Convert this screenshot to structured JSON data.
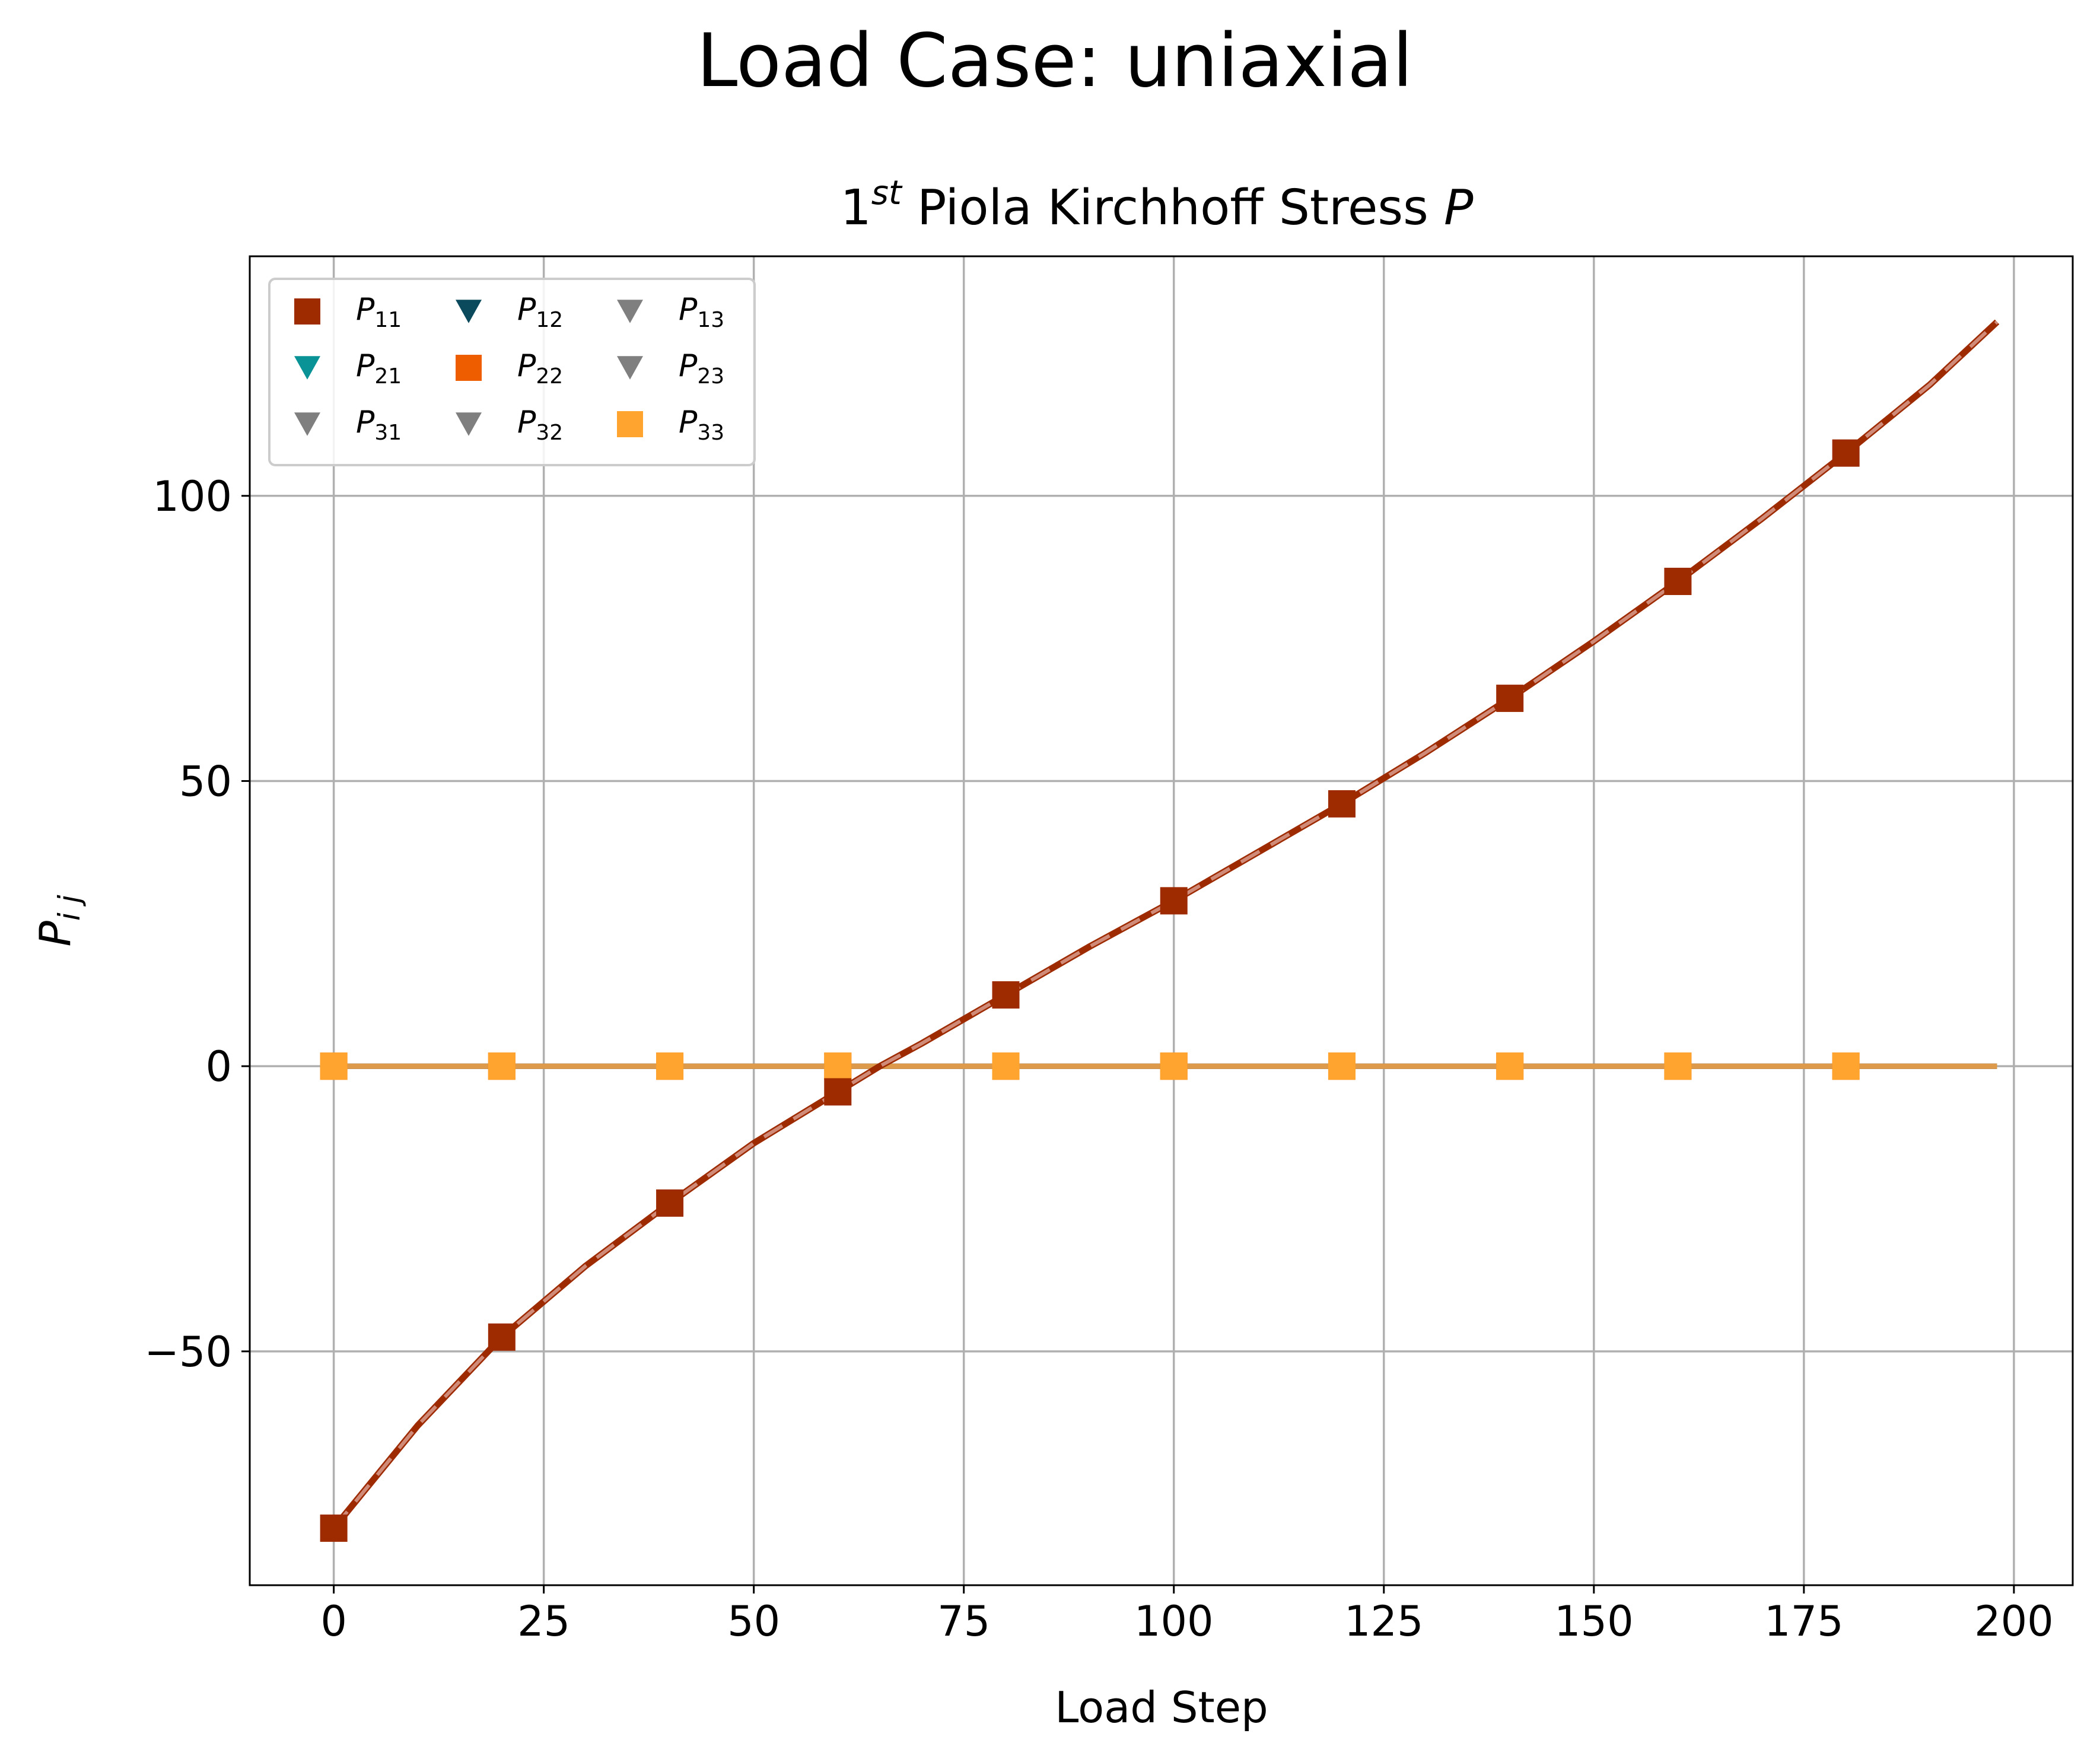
{
  "chart_data": {
    "type": "line",
    "suptitle": "Load Case: uniaxial",
    "title_base": "1",
    "title_sup": "st",
    "title_rest": " Piola Kirchhoff Stress ",
    "title_symbol": "P",
    "xlabel": "Load Step",
    "ylabel_base": "P",
    "ylabel_sub": "i j",
    "xlim": [
      -10,
      207
    ],
    "ylim": [
      -91,
      142
    ],
    "xticks": [
      0,
      25,
      50,
      75,
      100,
      125,
      150,
      175,
      200
    ],
    "yticks": [
      -50,
      0,
      50,
      100
    ],
    "ytick_labels": [
      "−50",
      "0",
      "50",
      "100"
    ],
    "grid": true,
    "legend_position": "upper-left",
    "legend_columns": 3,
    "curve_x": [
      0,
      5,
      10,
      20,
      30,
      40,
      50,
      60,
      65,
      70,
      80,
      90,
      100,
      110,
      120,
      130,
      140,
      150,
      160,
      170,
      180,
      190,
      198
    ],
    "curve_p11": [
      -81,
      -72,
      -63,
      -47.5,
      -35,
      -24,
      -13.5,
      -4.5,
      0,
      4,
      12.5,
      21,
      29,
      37.5,
      46,
      55,
      64.5,
      74.5,
      85,
      96,
      107.5,
      119.5,
      130.5
    ],
    "curve_zero": [
      0,
      0,
      0,
      0,
      0,
      0,
      0,
      0,
      0,
      0,
      0,
      0,
      0,
      0,
      0,
      0,
      0,
      0,
      0,
      0,
      0,
      0,
      0
    ],
    "marker_x": [
      0,
      20,
      40,
      60,
      80,
      100,
      120,
      140,
      160,
      180
    ],
    "series": [
      {
        "name": "P",
        "sub": "11",
        "marker": "square",
        "color": "#9e2a00",
        "line_color": "#9e2a00",
        "values": [
          -81,
          -47.5,
          -24,
          -4.5,
          12.5,
          29,
          46,
          64.5,
          85,
          107.5
        ]
      },
      {
        "name": "P",
        "sub": "12",
        "marker": "triangle-down",
        "color": "#0b4a5c",
        "line_color": "#0b4a5c",
        "values": [
          0,
          0,
          0,
          0,
          0,
          0,
          0,
          0,
          0,
          0
        ]
      },
      {
        "name": "P",
        "sub": "13",
        "marker": "triangle-down",
        "color": "#7f7f7f",
        "line_color": "#7f7f7f",
        "values": [
          0,
          0,
          0,
          0,
          0,
          0,
          0,
          0,
          0,
          0
        ]
      },
      {
        "name": "P",
        "sub": "21",
        "marker": "triangle-down",
        "color": "#0a9396",
        "line_color": "#0a9396",
        "values": [
          0,
          0,
          0,
          0,
          0,
          0,
          0,
          0,
          0,
          0
        ]
      },
      {
        "name": "P",
        "sub": "22",
        "marker": "square",
        "color": "#ee5d00",
        "line_color": "#ee5d00",
        "values": [
          0,
          0,
          0,
          0,
          0,
          0,
          0,
          0,
          0,
          0
        ]
      },
      {
        "name": "P",
        "sub": "23",
        "marker": "triangle-down",
        "color": "#7f7f7f",
        "line_color": "#7f7f7f",
        "values": [
          0,
          0,
          0,
          0,
          0,
          0,
          0,
          0,
          0,
          0
        ]
      },
      {
        "name": "P",
        "sub": "31",
        "marker": "triangle-down",
        "color": "#7f7f7f",
        "line_color": "#7f7f7f",
        "values": [
          0,
          0,
          0,
          0,
          0,
          0,
          0,
          0,
          0,
          0
        ]
      },
      {
        "name": "P",
        "sub": "32",
        "marker": "triangle-down",
        "color": "#7f7f7f",
        "line_color": "#7f7f7f",
        "values": [
          0,
          0,
          0,
          0,
          0,
          0,
          0,
          0,
          0,
          0
        ]
      },
      {
        "name": "P",
        "sub": "33",
        "marker": "square",
        "color": "#ffa42e",
        "line_color": "#dd9a4a",
        "values": [
          0,
          0,
          0,
          0,
          0,
          0,
          0,
          0,
          0,
          0
        ]
      }
    ],
    "legend_order": [
      "11",
      "12",
      "13",
      "21",
      "22",
      "23",
      "31",
      "32",
      "33"
    ],
    "colors": {
      "grid": "#b0b0b0",
      "axis": "#000000",
      "dashed_overlay": "#d08a78",
      "legend_border": "#cccccc"
    }
  }
}
